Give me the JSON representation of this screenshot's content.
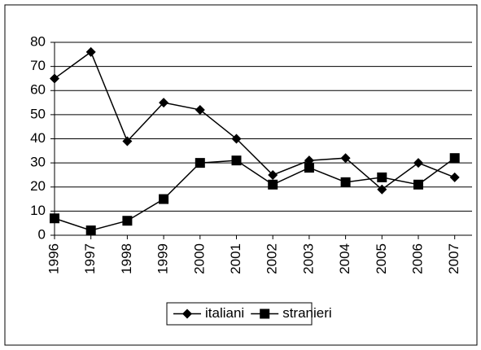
{
  "chart_data": {
    "type": "line",
    "categories": [
      "1996",
      "1997",
      "1998",
      "1999",
      "2000",
      "2001",
      "2002",
      "2003",
      "2004",
      "2005",
      "2006",
      "2007"
    ],
    "series": [
      {
        "name": "italiani",
        "color": "#000000",
        "marker": "diamond",
        "values": [
          65,
          76,
          39,
          55,
          52,
          40,
          25,
          31,
          32,
          19,
          30,
          24
        ]
      },
      {
        "name": "stranieri",
        "color": "#000000",
        "marker": "square",
        "values": [
          7,
          2,
          6,
          15,
          30,
          31,
          21,
          28,
          22,
          24,
          21,
          32
        ]
      }
    ],
    "ylim": [
      0,
      80
    ],
    "yticks": [
      0,
      10,
      20,
      30,
      40,
      50,
      60,
      70,
      80
    ],
    "grid": true,
    "legend": "bottom"
  }
}
